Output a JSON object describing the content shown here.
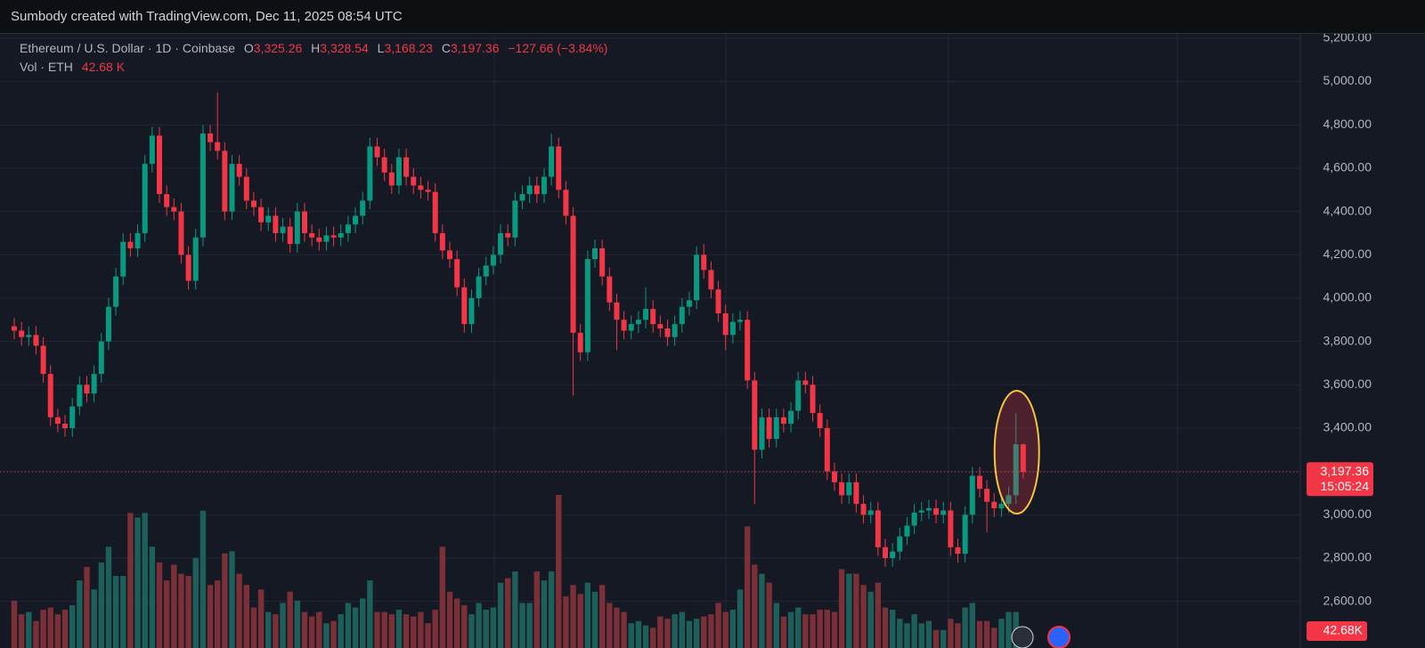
{
  "chart_data": {
    "type": "candlestick",
    "caption": "Sumbody created with TradingView.com, Dec 11, 2025 08:54 UTC",
    "symbol": "Ethereum / U.S. Dollar · 1D · Coinbase",
    "legend_open": {
      "key": "O",
      "value": 3325.26,
      "label": "3,325.26"
    },
    "legend_high": {
      "key": "H",
      "value": 3328.54,
      "label": "3,328.54"
    },
    "legend_low": {
      "key": "L",
      "value": 3168.23,
      "label": "3,168.23"
    },
    "legend_close": {
      "key": "C",
      "value": 3197.36,
      "label": "3,197.36"
    },
    "change": "−127.66 (−3.84%)",
    "volume_legend": {
      "key": "Vol · ETH",
      "label": "42.68 K"
    },
    "last_price": {
      "value": 3197.36,
      "label": "3,197.36"
    },
    "countdown": "15:05:24",
    "volume_label": "42.68K",
    "up_color": "#089981",
    "down_color": "#f23645",
    "volume_up_color": "#1d5f5a",
    "volume_down_color": "#7b2f36",
    "ylim": [
      2385,
      5220
    ],
    "yticks": [
      {
        "value": 2600,
        "label": "2,600.00"
      },
      {
        "value": 2800,
        "label": "2,800.00"
      },
      {
        "value": 3000,
        "label": "3,000.00"
      },
      {
        "value": 3200,
        "label": "3,200.00"
      },
      {
        "value": 3400,
        "label": "3,400.00"
      },
      {
        "value": 3600,
        "label": "3,600.00"
      },
      {
        "value": 3800,
        "label": "3,800.00"
      },
      {
        "value": 4000,
        "label": "4,000.00"
      },
      {
        "value": 4200,
        "label": "4,200.00"
      },
      {
        "value": 4400,
        "label": "4,400.00"
      },
      {
        "value": 4600,
        "label": "4,600.00"
      },
      {
        "value": 4800,
        "label": "4,800.00"
      },
      {
        "value": 5000,
        "label": "5,000.00"
      },
      {
        "value": 5200,
        "label": "5,200.00"
      }
    ],
    "grid": true,
    "open": [
      3870,
      3850,
      3820,
      3830,
      3780,
      3650,
      3450,
      3420,
      3400,
      3500,
      3600,
      3560,
      3650,
      3800,
      3960,
      4100,
      4260,
      4230,
      4300,
      4620,
      4750,
      4480,
      4420,
      4400,
      4200,
      4080,
      4280,
      4760,
      4720,
      4680,
      4400,
      4620,
      4560,
      4450,
      4420,
      4350,
      4380,
      4300,
      4330,
      4250,
      4400,
      4300,
      4280,
      4260,
      4290,
      4280,
      4300,
      4340,
      4380,
      4450,
      4700,
      4650,
      4580,
      4520,
      4650,
      4560,
      4520,
      4500,
      4490,
      4300,
      4220,
      4180,
      4050,
      3880,
      4000,
      4100,
      4150,
      4200,
      4300,
      4280,
      4450,
      4480,
      4520,
      4480,
      4560,
      4700,
      4500,
      4380,
      3840,
      3750,
      4180,
      4230,
      4100,
      3980,
      3900,
      3850,
      3880,
      3900,
      3950,
      3880,
      3860,
      3820,
      3880,
      3960,
      3990,
      4200,
      4130,
      4040,
      3930,
      3830,
      3890,
      3900,
      3620,
      3300,
      3450,
      3350,
      3450,
      3420,
      3480,
      3620,
      3600,
      3470,
      3400,
      3200,
      3150,
      3090,
      3150,
      3050,
      3000,
      3020,
      2850,
      2800,
      2830,
      2900,
      2950,
      3010,
      3020,
      3030,
      3000,
      3020,
      2850,
      2820,
      3000,
      3180,
      3120,
      3060,
      3030,
      3050,
      3090,
      3325.26
    ],
    "high": [
      3910,
      3890,
      3870,
      3870,
      3820,
      3690,
      3490,
      3460,
      3540,
      3640,
      3640,
      3690,
      3840,
      4000,
      4140,
      4300,
      4300,
      4340,
      4660,
      4790,
      4790,
      4520,
      4460,
      4440,
      4240,
      4320,
      4800,
      4800,
      4950,
      4720,
      4660,
      4660,
      4600,
      4490,
      4460,
      4420,
      4420,
      4370,
      4370,
      4440,
      4440,
      4340,
      4320,
      4330,
      4330,
      4340,
      4380,
      4420,
      4490,
      4740,
      4740,
      4690,
      4620,
      4690,
      4690,
      4600,
      4560,
      4540,
      4530,
      4340,
      4260,
      4220,
      4090,
      4040,
      4140,
      4190,
      4240,
      4340,
      4340,
      4490,
      4520,
      4560,
      4560,
      4600,
      4760,
      4740,
      4540,
      4420,
      3880,
      4220,
      4270,
      4270,
      4140,
      4020,
      3940,
      3920,
      3940,
      4050,
      3990,
      3920,
      3900,
      3920,
      4000,
      4030,
      4240,
      4250,
      4170,
      4080,
      3970,
      3930,
      3940,
      3940,
      3660,
      3490,
      3490,
      3490,
      3490,
      3520,
      3660,
      3660,
      3640,
      3510,
      3440,
      3240,
      3190,
      3190,
      3190,
      3090,
      3060,
      3060,
      2890,
      2870,
      2940,
      2990,
      3050,
      3060,
      3070,
      3070,
      3060,
      3060,
      2890,
      3040,
      3220,
      3220,
      3160,
      3100,
      3090,
      3130,
      3470,
      3328.54
    ],
    "low": [
      3810,
      3780,
      3780,
      3740,
      3610,
      3410,
      3380,
      3360,
      3360,
      3460,
      3520,
      3520,
      3610,
      3760,
      3920,
      4060,
      4190,
      4190,
      4260,
      4580,
      4440,
      4380,
      4360,
      4160,
      4040,
      4040,
      4240,
      4680,
      4640,
      4360,
      4360,
      4520,
      4410,
      4380,
      4310,
      4310,
      4260,
      4260,
      4210,
      4210,
      4260,
      4240,
      4220,
      4220,
      4240,
      4240,
      4260,
      4300,
      4340,
      4410,
      4610,
      4540,
      4480,
      4480,
      4520,
      4480,
      4460,
      4450,
      4260,
      4180,
      4140,
      4010,
      3840,
      3840,
      3960,
      4060,
      4110,
      4160,
      4240,
      4240,
      4410,
      4440,
      4440,
      4440,
      4520,
      4460,
      4340,
      3550,
      3710,
      3710,
      4140,
      4060,
      3940,
      3760,
      3810,
      3810,
      3840,
      3860,
      3840,
      3820,
      3780,
      3780,
      3840,
      3920,
      3950,
      4090,
      4000,
      3890,
      3760,
      3790,
      3850,
      3580,
      3050,
      3260,
      3310,
      3310,
      3380,
      3380,
      3440,
      3560,
      3430,
      3360,
      3160,
      3110,
      3050,
      3050,
      3010,
      2960,
      2960,
      2810,
      2760,
      2760,
      2790,
      2860,
      2910,
      2970,
      2980,
      2960,
      2960,
      2810,
      2780,
      2780,
      2960,
      3080,
      2920,
      2990,
      2990,
      3010,
      3050,
      3168.23
    ],
    "close": [
      3850,
      3820,
      3830,
      3780,
      3650,
      3450,
      3420,
      3400,
      3500,
      3600,
      3560,
      3650,
      3800,
      3960,
      4100,
      4260,
      4230,
      4300,
      4620,
      4750,
      4480,
      4420,
      4400,
      4200,
      4080,
      4280,
      4760,
      4720,
      4680,
      4400,
      4620,
      4560,
      4450,
      4420,
      4350,
      4380,
      4300,
      4330,
      4250,
      4400,
      4300,
      4280,
      4260,
      4290,
      4280,
      4300,
      4340,
      4380,
      4450,
      4700,
      4650,
      4580,
      4520,
      4650,
      4560,
      4520,
      4500,
      4490,
      4300,
      4220,
      4180,
      4050,
      3880,
      4000,
      4100,
      4150,
      4200,
      4300,
      4280,
      4450,
      4480,
      4520,
      4480,
      4560,
      4700,
      4500,
      4380,
      3840,
      3750,
      4180,
      4230,
      4100,
      3980,
      3900,
      3850,
      3880,
      3900,
      3950,
      3880,
      3860,
      3820,
      3880,
      3960,
      3990,
      4200,
      4130,
      4040,
      3930,
      3830,
      3890,
      3900,
      3620,
      3300,
      3450,
      3350,
      3450,
      3420,
      3480,
      3620,
      3600,
      3470,
      3400,
      3200,
      3150,
      3090,
      3150,
      3050,
      3000,
      3020,
      2850,
      2800,
      2830,
      2900,
      2950,
      3010,
      3020,
      3030,
      3000,
      3020,
      2850,
      2820,
      3000,
      3180,
      3120,
      3060,
      3030,
      3050,
      3090,
      3325.26,
      3197.36
    ],
    "volume": [
      210,
      150,
      160,
      120,
      170,
      180,
      150,
      170,
      190,
      300,
      360,
      260,
      380,
      450,
      320,
      320,
      600,
      580,
      600,
      450,
      380,
      300,
      370,
      330,
      320,
      400,
      610,
      280,
      300,
      420,
      430,
      330,
      280,
      180,
      260,
      160,
      150,
      200,
      250,
      210,
      160,
      140,
      160,
      110,
      120,
      150,
      200,
      180,
      220,
      300,
      160,
      160,
      150,
      170,
      150,
      140,
      160,
      110,
      170,
      450,
      250,
      220,
      190,
      150,
      200,
      170,
      180,
      290,
      310,
      340,
      200,
      200,
      340,
      300,
      340,
      680,
      230,
      280,
      240,
      290,
      250,
      280,
      200,
      180,
      160,
      110,
      120,
      100,
      90,
      140,
      130,
      150,
      160,
      120,
      130,
      140,
      150,
      200,
      160,
      170,
      260,
      540,
      370,
      330,
      290,
      200,
      140,
      160,
      180,
      150,
      150,
      170,
      170,
      160,
      350,
      330,
      330,
      280,
      250,
      290,
      180,
      170,
      130,
      110,
      150,
      110,
      120,
      80,
      80,
      130,
      110,
      180,
      200,
      120,
      120,
      90,
      130,
      160,
      160,
      42.68
    ]
  }
}
